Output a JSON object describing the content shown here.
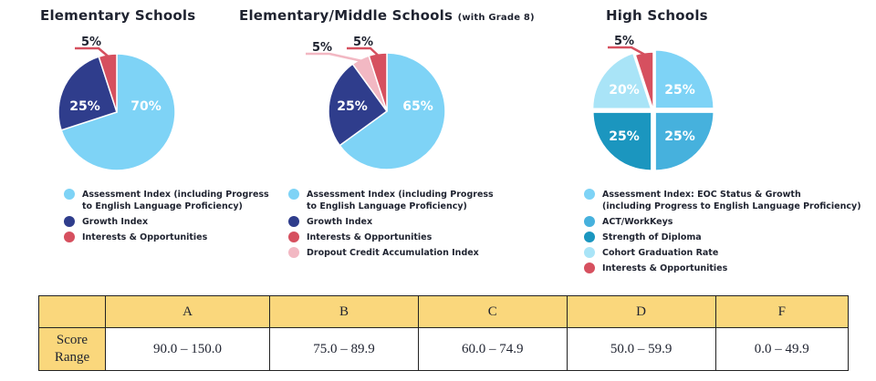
{
  "colors": {
    "assessment": "#7ed3f6",
    "growth": "#2f3d8c",
    "interests": "#d6505f",
    "dropout": "#f2b8c3",
    "act": "#46b1dd",
    "diploma": "#1b96bf",
    "cohort": "#a9e4f7",
    "table_header": "#fad77c"
  },
  "chart_data": [
    {
      "type": "pie",
      "title": "Elementary Schools",
      "slices": [
        {
          "label": "Assessment Index (including Progress to English Language Proficiency)",
          "value": 70,
          "color": "#7ed3f6",
          "display": "70%"
        },
        {
          "label": "Growth Index",
          "value": 25,
          "color": "#2f3d8c",
          "display": "25%"
        },
        {
          "label": "Interests & Opportunities",
          "value": 5,
          "color": "#d6505f",
          "display": "5%"
        }
      ],
      "legend": [
        {
          "line1": "Assessment Index (including Progress",
          "line2": "to English Language Proficiency)",
          "color": "#7ed3f6"
        },
        {
          "line1": "Growth Index",
          "line2": "",
          "color": "#2f3d8c"
        },
        {
          "line1": "Interests & Opportunities",
          "line2": "",
          "color": "#d6505f"
        }
      ]
    },
    {
      "type": "pie",
      "title": "Elementary/Middle Schools",
      "subtitle": "(with Grade 8)",
      "slices": [
        {
          "label": "Assessment Index (including Progress to English Language Proficiency)",
          "value": 65,
          "color": "#7ed3f6",
          "display": "65%"
        },
        {
          "label": "Growth Index",
          "value": 25,
          "color": "#2f3d8c",
          "display": "25%"
        },
        {
          "label": "Dropout Credit Accumulation Index",
          "value": 5,
          "color": "#f2b8c3",
          "display": "5%"
        },
        {
          "label": "Interests & Opportunities",
          "value": 5,
          "color": "#d6505f",
          "display": "5%"
        }
      ],
      "legend": [
        {
          "line1": "Assessment Index (including Progress",
          "line2": "to English Language Proficiency)",
          "color": "#7ed3f6"
        },
        {
          "line1": "Growth Index",
          "line2": "",
          "color": "#2f3d8c"
        },
        {
          "line1": "Interests & Opportunities",
          "line2": "",
          "color": "#d6505f"
        },
        {
          "line1": "Dropout Credit Accumulation Index",
          "line2": "",
          "color": "#f2b8c3"
        }
      ]
    },
    {
      "type": "pie",
      "title": "High Schools",
      "slices": [
        {
          "label": "Assessment Index: EOC Status & Growth (including Progress to English Language Proficiency)",
          "value": 25,
          "color": "#7ed3f6",
          "display": "25%"
        },
        {
          "label": "ACT/WorkKeys",
          "value": 25,
          "color": "#46b1dd",
          "display": "25%"
        },
        {
          "label": "Strength of Diploma",
          "value": 25,
          "color": "#1b96bf",
          "display": "25%"
        },
        {
          "label": "Cohort Graduation Rate",
          "value": 20,
          "color": "#a9e4f7",
          "display": "20%"
        },
        {
          "label": "Interests & Opportunities",
          "value": 5,
          "color": "#d6505f",
          "display": "5%"
        }
      ],
      "legend": [
        {
          "line1": "Assessment Index: EOC Status & Growth",
          "line2": "(including Progress to English Language Proficiency)",
          "color": "#7ed3f6"
        },
        {
          "line1": "ACT/WorkKeys",
          "line2": "",
          "color": "#46b1dd"
        },
        {
          "line1": "Strength of Diploma",
          "line2": "",
          "color": "#1b96bf"
        },
        {
          "line1": "Cohort Graduation Rate",
          "line2": "",
          "color": "#a9e4f7"
        },
        {
          "line1": "Interests & Opportunities",
          "line2": "",
          "color": "#d6505f"
        }
      ]
    },
    {
      "type": "table",
      "columns": [
        "",
        "A",
        "B",
        "C",
        "D",
        "F"
      ],
      "row_header": "Score Range",
      "row_header_lines": [
        "Score",
        "Range"
      ],
      "values": [
        "90.0 – 150.0",
        "75.0 – 89.9",
        "60.0 – 74.9",
        "50.0 – 59.9",
        "0.0 – 49.9"
      ]
    }
  ]
}
